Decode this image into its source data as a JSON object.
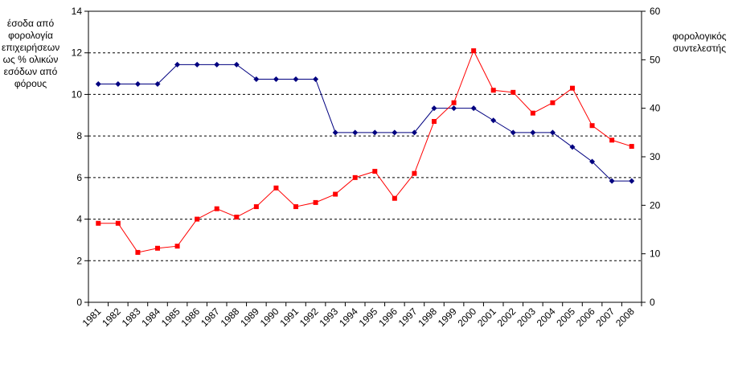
{
  "chart_data": {
    "type": "line",
    "title": "",
    "ylabel_left": "έσοδα από φορολογία επιχειρήσεων ως % ολικών εσόδων από φόρους",
    "ylabel_right": "φορολογικός συντελεστής",
    "categories": [
      "1981",
      "1982",
      "1983",
      "1984",
      "1985",
      "1986",
      "1987",
      "1988",
      "1989",
      "1990",
      "1991",
      "1992",
      "1993",
      "1994",
      "1995",
      "1996",
      "1997",
      "1998",
      "1999",
      "2000",
      "2001",
      "2002",
      "2003",
      "2004",
      "2005",
      "2006",
      "2007",
      "2008"
    ],
    "y_left_ticks": [
      "0",
      "2",
      "4",
      "6",
      "8",
      "10",
      "12",
      "14"
    ],
    "y_right_ticks": [
      "0",
      "10",
      "20",
      "30",
      "40",
      "50",
      "60"
    ],
    "ylim_left": [
      0,
      14
    ],
    "ylim_right": [
      0,
      60
    ],
    "grid": "horizontal dashed",
    "series": [
      {
        "axis": "right",
        "color": "#000080",
        "marker": "diamond",
        "values": [
          45,
          45,
          45,
          45,
          49,
          49,
          49,
          49,
          46,
          46,
          46,
          46,
          35,
          35,
          35,
          35,
          35,
          40,
          40,
          40,
          37.5,
          35,
          35,
          35,
          32,
          29,
          25,
          25
        ]
      },
      {
        "axis": "left",
        "color": "#ff0000",
        "marker": "square",
        "values": [
          3.8,
          3.8,
          2.4,
          2.6,
          2.7,
          4.0,
          4.5,
          4.1,
          4.6,
          5.5,
          4.6,
          4.8,
          5.2,
          6.0,
          6.3,
          5.0,
          6.2,
          8.7,
          9.6,
          12.1,
          10.2,
          10.1,
          9.1,
          9.6,
          10.3,
          8.5,
          7.8,
          7.5
        ]
      }
    ]
  }
}
